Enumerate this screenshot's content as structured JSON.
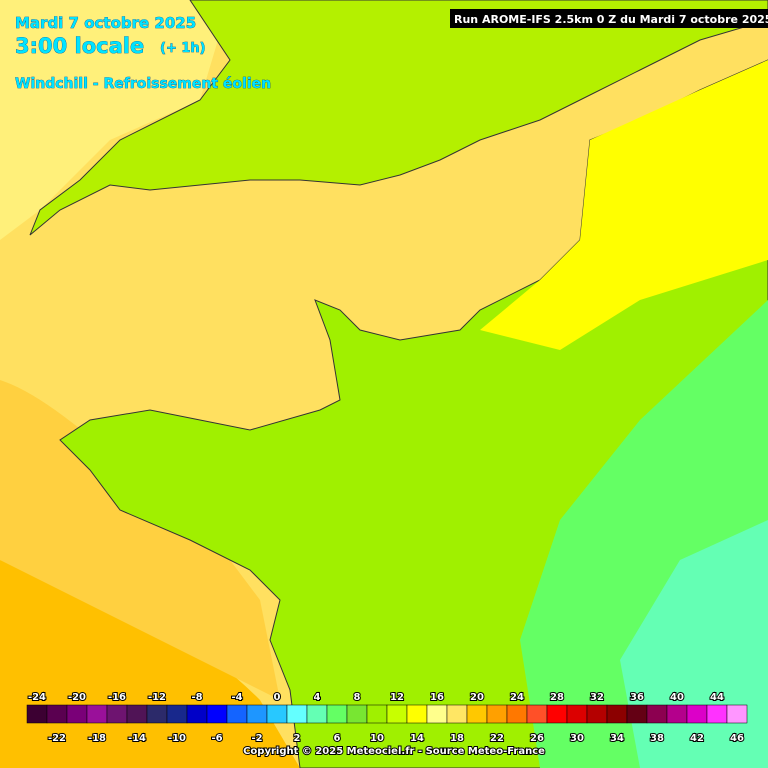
{
  "header": {
    "date": "Mardi 7 octobre 2025",
    "time": "3:00 locale",
    "offset": "(+ 1h)",
    "parameter": "Windchill - Refroissement éolien",
    "run": "Run AROME-IFS 2.5km 0 Z du Mardi 7 octobre 2025"
  },
  "legend": {
    "items": [
      {
        "value": -24,
        "color": "#3c0032"
      },
      {
        "value": -22,
        "color": "#5a0050"
      },
      {
        "value": -20,
        "color": "#7a0078"
      },
      {
        "value": -18,
        "color": "#9a109a"
      },
      {
        "value": -16,
        "color": "#6e1470"
      },
      {
        "value": -14,
        "color": "#501456"
      },
      {
        "value": -12,
        "color": "#2c2a6a"
      },
      {
        "value": -10,
        "color": "#18288c"
      },
      {
        "value": -8,
        "color": "#0000c8"
      },
      {
        "value": -6,
        "color": "#0000ff"
      },
      {
        "value": -4,
        "color": "#1464ff"
      },
      {
        "value": -2,
        "color": "#1e96ff"
      },
      {
        "value": 0,
        "color": "#28c8ff"
      },
      {
        "value": 2,
        "color": "#64ffff"
      },
      {
        "value": 4,
        "color": "#64ffb4"
      },
      {
        "value": 6,
        "color": "#64ff64"
      },
      {
        "value": 8,
        "color": "#78e632"
      },
      {
        "value": 10,
        "color": "#a0f000"
      },
      {
        "value": 12,
        "color": "#c8ff00"
      },
      {
        "value": 14,
        "color": "#ffff00"
      },
      {
        "value": 16,
        "color": "#ffff8c"
      },
      {
        "value": 18,
        "color": "#ffe664"
      },
      {
        "value": 20,
        "color": "#ffc800"
      },
      {
        "value": 22,
        "color": "#ffa000"
      },
      {
        "value": 24,
        "color": "#ff7800"
      },
      {
        "value": 26,
        "color": "#ff5028"
      },
      {
        "value": 28,
        "color": "#ff0000"
      },
      {
        "value": 30,
        "color": "#dc0000"
      },
      {
        "value": 32,
        "color": "#b40000"
      },
      {
        "value": 34,
        "color": "#8c0000"
      },
      {
        "value": 36,
        "color": "#640014"
      },
      {
        "value": 38,
        "color": "#8c0050"
      },
      {
        "value": 40,
        "color": "#b4008c"
      },
      {
        "value": 42,
        "color": "#dc00c8"
      },
      {
        "value": 44,
        "color": "#ff32ff"
      },
      {
        "value": 46,
        "color": "#ff96ff"
      }
    ]
  },
  "footer": {
    "copyright": "Copyright © 2025 Meteociel.fr - Source Meteo-France"
  }
}
